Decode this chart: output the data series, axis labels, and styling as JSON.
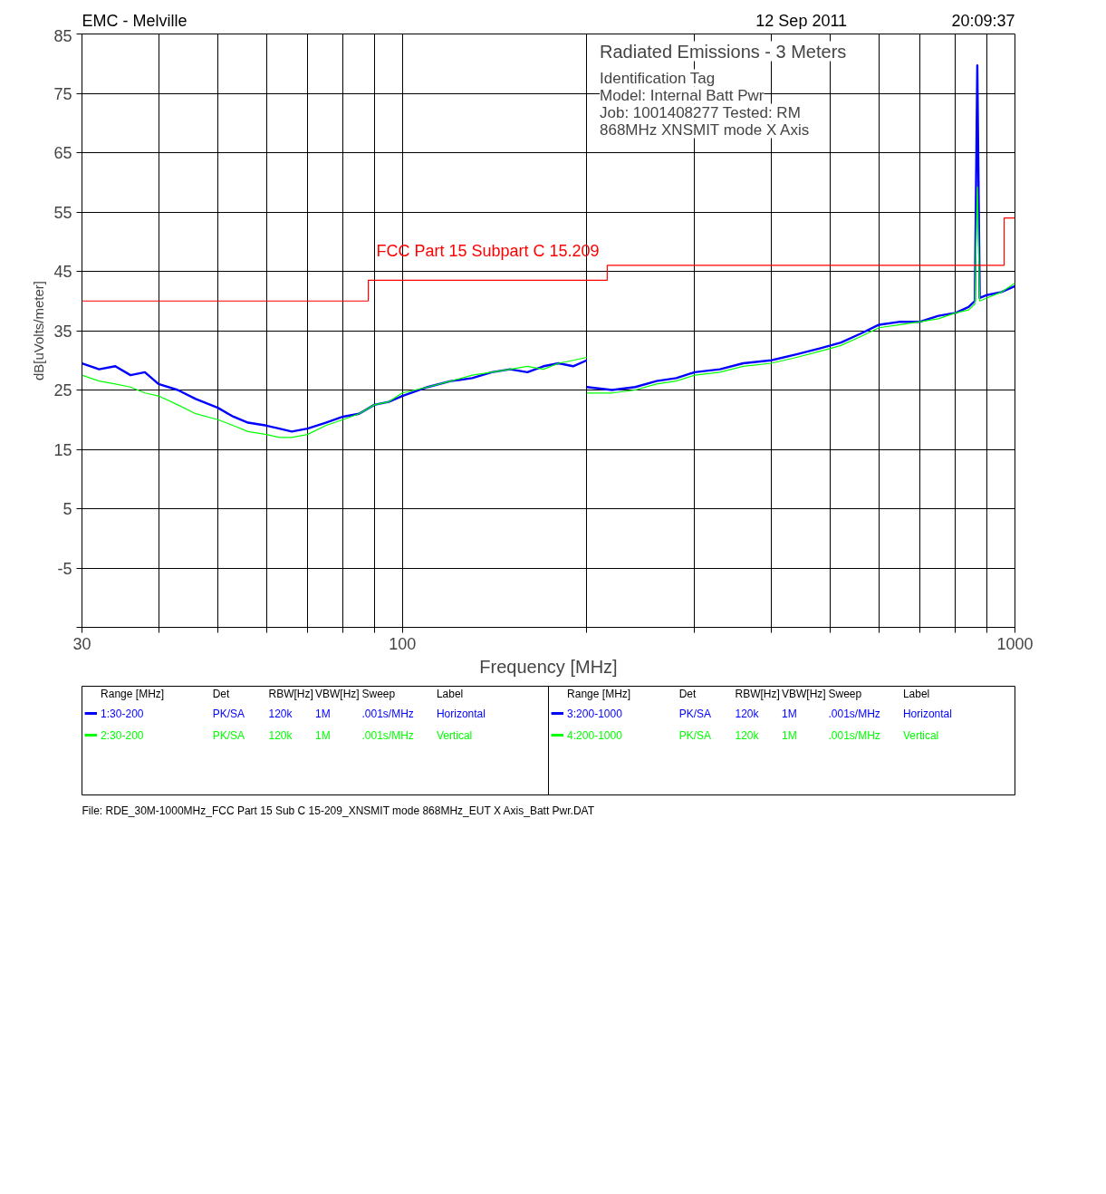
{
  "chart_data": {
    "type": "line",
    "title": "EMC - Melville",
    "subtitle": "Radiated Emissions - 3 Meters",
    "xlabel": "Frequency [MHz]",
    "ylabel": "dB[uVolts/meter]",
    "log": "x",
    "grid": true,
    "legend": "bottom",
    "marker": "none",
    "line_style": "solid",
    "xlim": [
      30,
      1000
    ],
    "ylim": [
      -15,
      85
    ],
    "xticks": [
      30,
      {
        "value": 40,
        "label": null
      },
      {
        "value": 50,
        "label": null
      },
      {
        "value": 60,
        "label": null
      },
      {
        "value": 70,
        "label": null
      },
      {
        "value": 80,
        "label": null
      },
      {
        "value": 90,
        "label": null
      },
      100,
      {
        "value": 200,
        "label": null
      },
      {
        "value": 300,
        "label": null
      },
      {
        "value": 400,
        "label": null
      },
      {
        "value": 500,
        "label": null
      },
      {
        "value": 600,
        "label": null
      },
      {
        "value": 700,
        "label": null
      },
      {
        "value": 800,
        "label": null
      },
      {
        "value": 900,
        "label": null
      },
      1000
    ],
    "yticks": [
      {
        "value": -15,
        "label": null
      },
      -5,
      5,
      15,
      25,
      35,
      45,
      55,
      65,
      75,
      85
    ],
    "series": [
      {
        "name": "1:30-200",
        "color": "#0000ff",
        "x": [
          30,
          32,
          34,
          36,
          38,
          40,
          43,
          46,
          50,
          53,
          56,
          60,
          63,
          66,
          70,
          75,
          80,
          85,
          90,
          95,
          100,
          110,
          120,
          130,
          140,
          150,
          160,
          170,
          180,
          190,
          200
        ],
        "values": [
          29.5,
          28.5,
          29,
          27.5,
          28,
          26,
          25,
          23.5,
          22,
          20.5,
          19.5,
          19,
          18.5,
          18,
          18.5,
          19.5,
          20.5,
          21,
          22.5,
          23,
          24,
          25.5,
          26.5,
          27,
          28,
          28.5,
          28,
          29,
          29.5,
          29,
          30
        ]
      },
      {
        "name": "2:30-200",
        "color": "#00ff00",
        "x": [
          30,
          32,
          34,
          36,
          38,
          40,
          43,
          46,
          50,
          53,
          56,
          60,
          63,
          66,
          70,
          75,
          80,
          85,
          90,
          95,
          100,
          110,
          120,
          130,
          140,
          150,
          160,
          170,
          180,
          190,
          200
        ],
        "values": [
          27.5,
          26.5,
          26,
          25.5,
          24.5,
          24,
          22.5,
          21,
          20,
          19,
          18,
          17.5,
          17,
          17,
          17.5,
          19,
          20,
          21,
          22.5,
          23,
          24.5,
          25.5,
          26.5,
          27.5,
          28,
          28.5,
          29,
          28.5,
          29.5,
          30,
          30.5
        ]
      },
      {
        "name": "3:200-1000",
        "color": "#0000ff",
        "x": [
          200,
          220,
          240,
          260,
          280,
          300,
          330,
          360,
          400,
          440,
          480,
          520,
          560,
          600,
          650,
          700,
          750,
          800,
          840,
          860,
          868,
          876,
          900,
          950,
          1000
        ],
        "values": [
          25.5,
          25,
          25.5,
          26.5,
          27,
          28,
          28.5,
          29.5,
          30,
          31,
          32,
          33,
          34.5,
          36,
          36.5,
          36.5,
          37.5,
          38,
          39,
          40,
          79.7,
          40.5,
          41,
          41.5,
          42.5
        ]
      },
      {
        "name": "4:200-1000",
        "color": "#00ff00",
        "x": [
          200,
          220,
          240,
          260,
          280,
          300,
          330,
          360,
          400,
          440,
          480,
          520,
          560,
          600,
          650,
          700,
          750,
          800,
          840,
          860,
          868,
          876,
          900,
          950,
          1000
        ],
        "values": [
          24.5,
          24.5,
          25,
          26,
          26.5,
          27.5,
          28,
          29,
          29.5,
          30.5,
          31.5,
          32.5,
          34,
          35.5,
          36,
          36.5,
          37,
          38,
          38.5,
          39.5,
          59.2,
          40,
          40.5,
          41.5,
          43
        ]
      },
      {
        "name": "FCC Part 15 Subpart C 15.209",
        "color": "#ff0000",
        "type": "step",
        "x": [
          30,
          88,
          216,
          960,
          1000
        ],
        "values": [
          40,
          43.5,
          46,
          54,
          54
        ]
      }
    ],
    "annotations": [
      "12 Sep 2011",
      "20:09:37",
      "Identification Tag",
      "Model: Internal Batt Pwr",
      "Job: 1001408277     Tested: RM",
      "868MHz XNSMIT mode  X Axis",
      "File: RDE_30M-1000MHz_FCC Part 15 Sub C 15-209_XNSMIT mode 868MHz_EUT X Axis_Batt Pwr.DAT",
      "Range [MHz]",
      "Det",
      "RBW[Hz]",
      "VBW[Hz]",
      "Sweep",
      "Label",
      "PK/SA",
      "120k",
      "1M",
      ".001s/MHz",
      "Horizontal",
      "PK/SA",
      "120k",
      "1M",
      ".001s/MHz",
      "Vertical",
      "PK/SA",
      "120k",
      "1M",
      ".001s/MHz",
      "Horizontal",
      "PK/SA",
      "120k",
      "1M",
      ".001s/MHz",
      "Vertical"
    ]
  }
}
